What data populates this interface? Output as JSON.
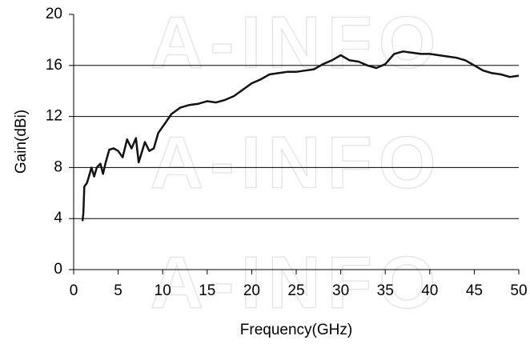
{
  "chart_data": {
    "type": "line",
    "watermark": "A-INFO",
    "xlabel": "Frequency(GHz)",
    "ylabel": "Gain(dBi)",
    "x": [
      1.0,
      1.1,
      1.2,
      1.5,
      1.8,
      2.0,
      2.3,
      2.6,
      3.0,
      3.3,
      3.6,
      4.0,
      4.5,
      5.0,
      5.5,
      6.0,
      6.5,
      7.0,
      7.3,
      7.7,
      8.0,
      8.5,
      9.0,
      9.5,
      10,
      11,
      12,
      13,
      14,
      15,
      16,
      17,
      18,
      19,
      20,
      21,
      22,
      23,
      24,
      25,
      26,
      27,
      28,
      29,
      30,
      31,
      32,
      33,
      34,
      35,
      36,
      37,
      38,
      39,
      40,
      41,
      42,
      43,
      44,
      45,
      46,
      47,
      48,
      49,
      50
    ],
    "values": [
      3.8,
      4.5,
      6.5,
      6.8,
      7.5,
      8.0,
      7.3,
      8.0,
      8.3,
      7.5,
      8.4,
      9.4,
      9.5,
      9.3,
      8.8,
      10.2,
      9.5,
      10.3,
      8.4,
      9.3,
      10.0,
      9.3,
      9.5,
      10.7,
      11.2,
      12.2,
      12.7,
      12.9,
      13.0,
      13.2,
      13.1,
      13.3,
      13.6,
      14.1,
      14.6,
      14.9,
      15.3,
      15.4,
      15.5,
      15.5,
      15.6,
      15.7,
      16.1,
      16.4,
      16.8,
      16.4,
      16.3,
      16.0,
      15.8,
      16.1,
      16.9,
      17.1,
      17.0,
      16.9,
      16.9,
      16.8,
      16.7,
      16.6,
      16.4,
      16.0,
      15.6,
      15.4,
      15.3,
      15.1,
      15.2
    ],
    "color": "#111111",
    "xlim": [
      0,
      50
    ],
    "xticks": [
      0,
      5,
      10,
      15,
      20,
      25,
      30,
      35,
      40,
      45,
      50
    ],
    "ylim": [
      0,
      20
    ],
    "yticks": [
      0,
      4,
      8,
      12,
      16,
      20
    ],
    "grid": true
  }
}
